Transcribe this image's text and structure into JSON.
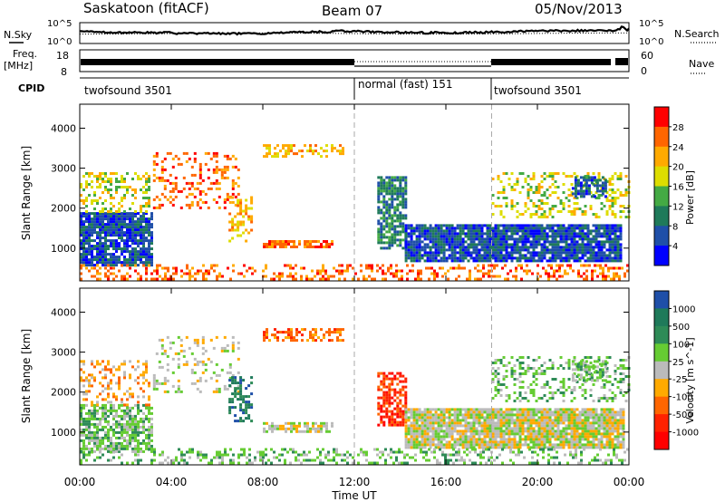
{
  "header": {
    "station": "Saskatoon (fitACF)",
    "beam": "Beam 07",
    "date": "05/Nov/2013"
  },
  "top_panels": {
    "noise_label_left": "N.Sky",
    "noise_label_right": "N.Search",
    "noise_ticks_left": [
      "10^5",
      "10^0"
    ],
    "noise_ticks_right": [
      "10^5",
      "10^0"
    ],
    "freq_label": "Freq.",
    "freq_unit": "[MHz]",
    "freq_ticks": [
      "18",
      "8"
    ],
    "nave_label": "Nave",
    "nave_ticks": [
      "60",
      "0"
    ],
    "cpid_label": "CPID",
    "cpid_segments": [
      {
        "label": "twofsound 3501",
        "start_h": 0,
        "end_h": 12
      },
      {
        "label": "normal (fast) 151",
        "start_h": 12,
        "end_h": 18
      },
      {
        "label": "twofsound 3501",
        "start_h": 18,
        "end_h": 24
      }
    ]
  },
  "chart_data": [
    {
      "type": "heatmap",
      "name": "power",
      "ylabel": "Slant Range [km]",
      "xlabel": "",
      "yticks": [
        1000,
        2000,
        3000,
        4000
      ],
      "ylim": [
        180,
        4600
      ],
      "xlim": [
        0,
        24
      ],
      "colorbar": {
        "label": "Power [dB]",
        "ticks": [
          "28",
          "24",
          "20",
          "16",
          "12",
          "8",
          "4"
        ],
        "colors": [
          "#ff0000",
          "#ff6600",
          "#ffaa00",
          "#dddd00",
          "#44aa44",
          "#1f7a5a",
          "#1f4fa8",
          "#0000ff"
        ]
      },
      "regions": [
        {
          "t0": 0.0,
          "t1": 3.2,
          "r0": 600,
          "r1": 1900,
          "level": 6,
          "density": 0.85
        },
        {
          "t0": 0.0,
          "t1": 3.0,
          "r0": 1900,
          "r1": 2900,
          "level": 3,
          "density": 0.35
        },
        {
          "t0": 3.2,
          "t1": 7.0,
          "r0": 2000,
          "r1": 3400,
          "level": 1,
          "density": 0.25
        },
        {
          "t0": 6.5,
          "t1": 7.5,
          "r0": 1200,
          "r1": 2300,
          "level": 2,
          "density": 0.4
        },
        {
          "t0": 8.0,
          "t1": 11.5,
          "r0": 3300,
          "r1": 3600,
          "level": 2,
          "density": 0.5
        },
        {
          "t0": 8.0,
          "t1": 11.0,
          "r0": 1000,
          "r1": 1200,
          "level": 1,
          "density": 0.7
        },
        {
          "t0": 13.0,
          "t1": 14.2,
          "r0": 1000,
          "r1": 2800,
          "level": 5,
          "density": 0.75
        },
        {
          "t0": 14.2,
          "t1": 23.6,
          "r0": 700,
          "r1": 1600,
          "level": 6,
          "density": 0.9
        },
        {
          "t0": 18.0,
          "t1": 24.0,
          "r0": 1800,
          "r1": 2900,
          "level": 3,
          "density": 0.3
        },
        {
          "t0": 21.5,
          "t1": 23.0,
          "r0": 2300,
          "r1": 2800,
          "level": 6,
          "density": 0.6
        },
        {
          "t0": 0.0,
          "t1": 24.0,
          "r0": 200,
          "r1": 600,
          "level": 1,
          "density": 0.35
        }
      ]
    },
    {
      "type": "heatmap",
      "name": "velocity",
      "ylabel": "Slant Range [km]",
      "xlabel": "Time UT",
      "yticks": [
        1000,
        2000,
        3000,
        4000
      ],
      "ylim": [
        180,
        4600
      ],
      "xlim": [
        0,
        24
      ],
      "xticks": [
        "00:00",
        "04:00",
        "08:00",
        "12:00",
        "16:00",
        "20:00",
        "00:00"
      ],
      "colorbar": {
        "label": "Velocity [m s^-1]",
        "ticks": [
          "1000",
          "500",
          "100",
          "25",
          "-25",
          "-100",
          "-500",
          "-1000"
        ],
        "colors": [
          "#1f4fa8",
          "#1f7a5a",
          "#2e8b57",
          "#66cc33",
          "#bbbbbb",
          "#ffaa00",
          "#ff6600",
          "#ff2200",
          "#ff0000"
        ]
      },
      "regions": [
        {
          "t0": 0.0,
          "t1": 3.2,
          "r0": 500,
          "r1": 1700,
          "level": 3,
          "density": 0.7
        },
        {
          "t0": 0.0,
          "t1": 3.0,
          "r0": 1700,
          "r1": 2800,
          "level": 5,
          "density": 0.3
        },
        {
          "t0": 3.2,
          "t1": 7.0,
          "r0": 2000,
          "r1": 3400,
          "level": 4,
          "density": 0.2
        },
        {
          "t0": 6.5,
          "t1": 7.5,
          "r0": 1300,
          "r1": 2400,
          "level": 1,
          "density": 0.45
        },
        {
          "t0": 8.0,
          "t1": 11.5,
          "r0": 3300,
          "r1": 3600,
          "level": 6,
          "density": 0.45
        },
        {
          "t0": 8.0,
          "t1": 11.0,
          "r0": 1000,
          "r1": 1250,
          "level": 4,
          "density": 0.7
        },
        {
          "t0": 13.0,
          "t1": 14.2,
          "r0": 1200,
          "r1": 2500,
          "level": 7,
          "density": 0.65
        },
        {
          "t0": 14.2,
          "t1": 23.8,
          "r0": 600,
          "r1": 1600,
          "level": 4,
          "density": 0.92
        },
        {
          "t0": 18.0,
          "t1": 24.0,
          "r0": 1800,
          "r1": 2900,
          "level": 3,
          "density": 0.3
        },
        {
          "t0": 21.5,
          "t1": 23.0,
          "r0": 2300,
          "r1": 2800,
          "level": 3,
          "density": 0.55
        },
        {
          "t0": 0.0,
          "t1": 24.0,
          "r0": 200,
          "r1": 600,
          "level": 3,
          "density": 0.3
        }
      ]
    }
  ]
}
